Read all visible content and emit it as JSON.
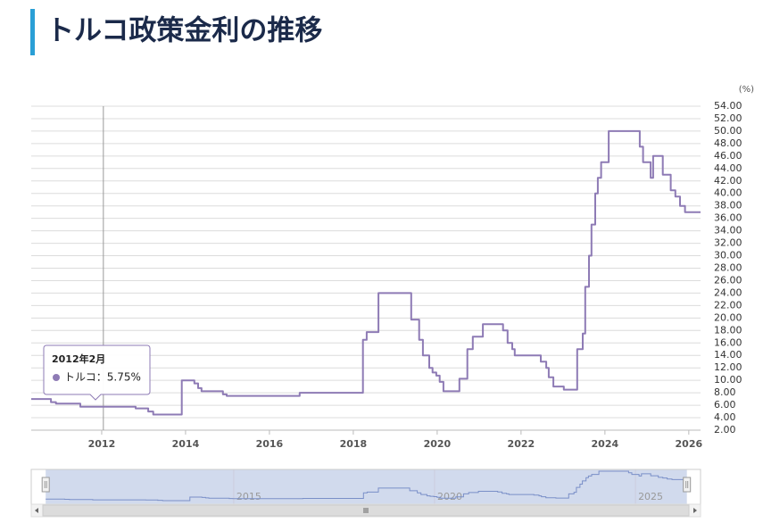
{
  "chart_data": {
    "type": "line",
    "title": "トルコ政策金利の推移",
    "unit": "(%)",
    "color": "#8e7bb5",
    "x": [
      2010.32,
      2010.79,
      2010.79,
      2010.91,
      2010.91,
      2011.49,
      2011.49,
      2012.81,
      2012.81,
      2013.11,
      2013.11,
      2013.23,
      2013.23,
      2013.91,
      2013.91,
      2014.21,
      2014.21,
      2014.3,
      2014.3,
      2014.38,
      2014.38,
      2014.89,
      2014.89,
      2014.98,
      2014.98,
      2016.72,
      2016.72,
      2018.23,
      2018.23,
      2018.32,
      2018.32,
      2018.6,
      2018.6,
      2019.38,
      2019.38,
      2019.57,
      2019.57,
      2019.66,
      2019.66,
      2019.81,
      2019.81,
      2019.89,
      2019.89,
      2019.98,
      2019.98,
      2020.06,
      2020.06,
      2020.15,
      2020.15,
      2020.53,
      2020.53,
      2020.72,
      2020.72,
      2020.85,
      2020.85,
      2021.09,
      2021.09,
      2021.57,
      2021.57,
      2021.68,
      2021.68,
      2021.79,
      2021.79,
      2021.85,
      2021.85,
      2022.47,
      2022.47,
      2022.6,
      2022.6,
      2022.66,
      2022.66,
      2022.77,
      2022.77,
      2023.02,
      2023.02,
      2023.34,
      2023.34,
      2023.47,
      2023.47,
      2023.53,
      2023.53,
      2023.62,
      2023.62,
      2023.68,
      2023.68,
      2023.77,
      2023.77,
      2023.83,
      2023.83,
      2023.91,
      2023.91,
      2024.09,
      2024.09,
      2024.83,
      2024.83,
      2024.91,
      2024.91,
      2025.09,
      2025.09,
      2025.15,
      2025.15,
      2025.38,
      2025.38,
      2025.57,
      2025.57,
      2025.68,
      2025.68,
      2025.79,
      2025.79,
      2025.91,
      2025.91,
      2026.28
    ],
    "values": [
      7,
      7,
      6.5,
      6.5,
      6.25,
      6.25,
      5.75,
      5.75,
      5.5,
      5.5,
      5,
      5,
      4.5,
      4.5,
      10,
      10,
      9.5,
      9.5,
      8.75,
      8.75,
      8.25,
      8.25,
      7.75,
      7.75,
      7.5,
      7.5,
      8,
      8,
      16.5,
      16.5,
      17.75,
      17.75,
      24,
      24,
      19.75,
      19.75,
      16.5,
      16.5,
      14,
      14,
      12,
      12,
      11.25,
      11.25,
      10.75,
      10.75,
      9.75,
      9.75,
      8.25,
      8.25,
      10.25,
      10.25,
      15,
      15,
      17,
      17,
      19,
      19,
      18,
      18,
      16,
      16,
      15,
      15,
      14,
      14,
      13,
      13,
      12,
      12,
      10.5,
      10.5,
      9,
      9,
      8.5,
      8.5,
      15,
      15,
      17.5,
      17.5,
      25,
      25,
      30,
      30,
      35,
      35,
      40,
      40,
      42.5,
      42.5,
      45,
      45,
      50,
      50,
      47.5,
      47.5,
      45,
      45,
      42.5,
      42.5,
      46,
      46,
      43,
      43,
      40.5,
      40.5,
      39.5,
      39.5,
      38,
      38,
      37,
      37
    ],
    "xlim": [
      2010.32,
      2026.28
    ],
    "xticks": [
      2012,
      2014,
      2016,
      2018,
      2020,
      2022,
      2024,
      2026
    ],
    "ylim": [
      2,
      54
    ],
    "yticks": [
      {
        "value": 2,
        "label": "2.00"
      },
      {
        "value": 4,
        "label": "4.00"
      },
      {
        "value": 6,
        "label": "6.00"
      },
      {
        "value": 8,
        "label": "8.00"
      },
      {
        "value": 10,
        "label": "10.00"
      },
      {
        "value": 12,
        "label": "12.00"
      },
      {
        "value": 14,
        "label": "14.00"
      },
      {
        "value": 16,
        "label": "16.00"
      },
      {
        "value": 18,
        "label": "18.00"
      },
      {
        "value": 20,
        "label": "20.00"
      },
      {
        "value": 22,
        "label": "22.00"
      },
      {
        "value": 24,
        "label": "24.00"
      },
      {
        "value": 26,
        "label": "26.00"
      },
      {
        "value": 28,
        "label": "28.00"
      },
      {
        "value": 30,
        "label": "30.00"
      },
      {
        "value": 32,
        "label": "32.00"
      },
      {
        "value": 34,
        "label": "34.00"
      },
      {
        "value": 36,
        "label": "36.00"
      },
      {
        "value": 38,
        "label": "38.00"
      },
      {
        "value": 40,
        "label": "40.00"
      },
      {
        "value": 42,
        "label": "42.00"
      },
      {
        "value": 44,
        "label": "44.00"
      },
      {
        "value": 46,
        "label": "46.00"
      },
      {
        "value": 48,
        "label": "48.00"
      },
      {
        "value": 50,
        "label": "50.00"
      },
      {
        "value": 52,
        "label": "52.00"
      },
      {
        "value": 54,
        "label": "54.00"
      }
    ],
    "grid": true,
    "tooltip": {
      "x": 2012.04,
      "title": "2012年2月",
      "text": "トルコ：5.75%"
    },
    "navigator": {
      "xlim": [
        2009.96,
        2026.62
      ],
      "xticks": [
        2015,
        2020,
        2025
      ]
    }
  }
}
